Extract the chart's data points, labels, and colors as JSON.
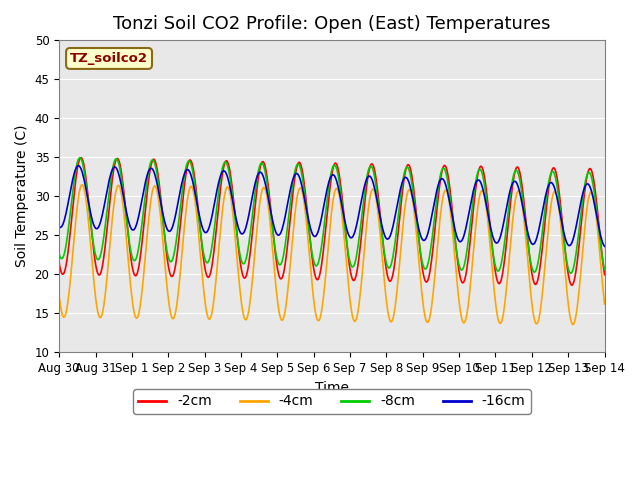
{
  "title": "Tonzi Soil CO2 Profile: Open (East) Temperatures",
  "xlabel": "Time",
  "ylabel": "Soil Temperature (C)",
  "ylim": [
    10,
    50
  ],
  "background_color": "#e8e8e8",
  "fig_background": "#ffffff",
  "legend_label": "TZ_soilco2",
  "series": [
    {
      "label": "-2cm",
      "color": "#ff0000",
      "amplitude": 15.0,
      "min_base": 20.0,
      "phase": 0.0,
      "trend": -1.5
    },
    {
      "label": "-4cm",
      "color": "#ffa500",
      "amplitude": 17.0,
      "min_base": 14.5,
      "phase": -0.3,
      "trend": -1.0
    },
    {
      "label": "-8cm",
      "color": "#00cc00",
      "amplitude": 13.0,
      "min_base": 22.0,
      "phase": 0.3,
      "trend": -2.0
    },
    {
      "label": "-16cm",
      "color": "#0000cc",
      "amplitude": 8.0,
      "min_base": 26.0,
      "phase": 0.7,
      "trend": -2.5
    }
  ],
  "num_days": 15,
  "points_per_day": 48,
  "xtick_labels": [
    "Aug 30",
    "Aug 31",
    "Sep 1",
    "Sep 2",
    "Sep 3",
    "Sep 4",
    "Sep 5",
    "Sep 6",
    "Sep 7",
    "Sep 8",
    "Sep 9",
    "Sep 10",
    "Sep 11",
    "Sep 12",
    "Sep 13",
    "Sep 14"
  ],
  "ytick_values": [
    10,
    15,
    20,
    25,
    30,
    35,
    40,
    45,
    50
  ],
  "title_fontsize": 13,
  "axis_label_fontsize": 10,
  "tick_fontsize": 8.5,
  "legend_fontsize": 10
}
